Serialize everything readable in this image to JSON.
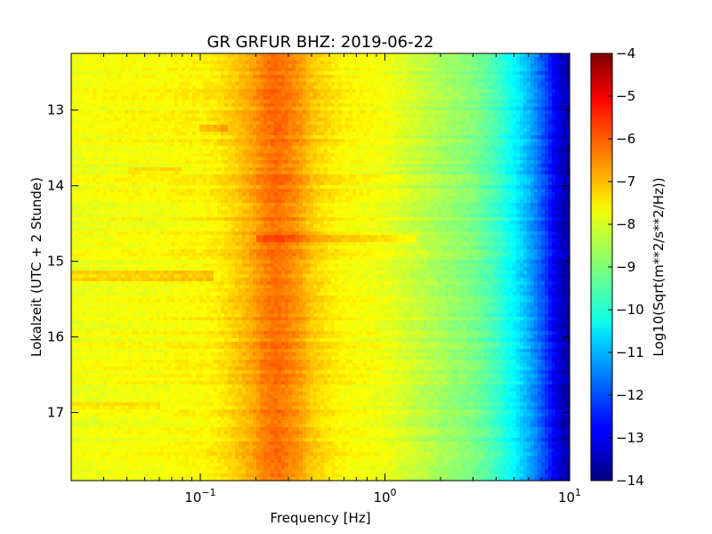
{
  "chart_data": {
    "type": "heatmap",
    "title": "GR GRFUR BHZ: 2019-06-22",
    "xlabel": "Frequency [Hz]",
    "ylabel": "Lokalzeit (UTC + 2 Stunde)",
    "x_scale": "log",
    "xlim": [
      0.02,
      10
    ],
    "x_ticks": [
      {
        "value": 0.1,
        "label_base": "10",
        "label_exp": "−1"
      },
      {
        "value": 1,
        "label_base": "10",
        "label_exp": "0"
      },
      {
        "value": 10,
        "label_base": "10",
        "label_exp": "1"
      }
    ],
    "ylim": [
      12.25,
      17.9
    ],
    "y_inverted": true,
    "y_ticks": [
      13,
      14,
      15,
      16,
      17
    ],
    "y_tick_labels": [
      "13",
      "14",
      "15",
      "16",
      "17"
    ],
    "colorbar": {
      "label": "Log10(Sqrt(m**2/s**2/Hz))",
      "range": [
        -14,
        -4
      ],
      "ticks": [
        -4,
        -5,
        -6,
        -7,
        -8,
        -9,
        -10,
        -11,
        -12,
        -13,
        -14
      ],
      "tick_labels": [
        "−4",
        "−5",
        "−6",
        "−7",
        "−8",
        "−9",
        "−10",
        "−11",
        "−12",
        "−13",
        "−14"
      ],
      "colormap": "jet"
    },
    "spectrum_profile": {
      "frequency_hz": [
        0.02,
        0.04,
        0.06,
        0.08,
        0.1,
        0.12,
        0.15,
        0.19,
        0.22,
        0.26,
        0.3,
        0.35,
        0.4,
        0.5,
        0.6,
        0.8,
        1.0,
        1.5,
        2.0,
        3.0,
        4.0,
        5.0,
        6.0,
        7.0,
        8.0,
        9.0,
        10.0
      ],
      "log10_amplitude": [
        -7.9,
        -7.8,
        -7.8,
        -7.7,
        -7.7,
        -7.6,
        -7.3,
        -6.9,
        -6.5,
        -6.3,
        -6.5,
        -6.8,
        -7.2,
        -7.5,
        -7.7,
        -7.8,
        -7.9,
        -8.3,
        -8.6,
        -9.0,
        -9.6,
        -10.3,
        -11.0,
        -11.8,
        -12.6,
        -13.3,
        -13.6
      ]
    },
    "features": [
      {
        "time": 14.7,
        "fmin": 0.2,
        "fmax": 1.5,
        "log10_amplitude_delta": 0.5
      },
      {
        "time": 15.2,
        "fmin": 0.02,
        "fmax": 0.12,
        "log10_amplitude_delta": 0.6
      },
      {
        "time": 13.8,
        "fmin": 0.04,
        "fmax": 0.08,
        "log10_amplitude_delta": 0.4
      },
      {
        "time": 13.25,
        "fmin": 0.1,
        "fmax": 0.14,
        "log10_amplitude_delta": 0.5
      },
      {
        "time": 16.9,
        "fmin": 0.02,
        "fmax": 0.06,
        "log10_amplitude_delta": 0.4
      }
    ]
  }
}
